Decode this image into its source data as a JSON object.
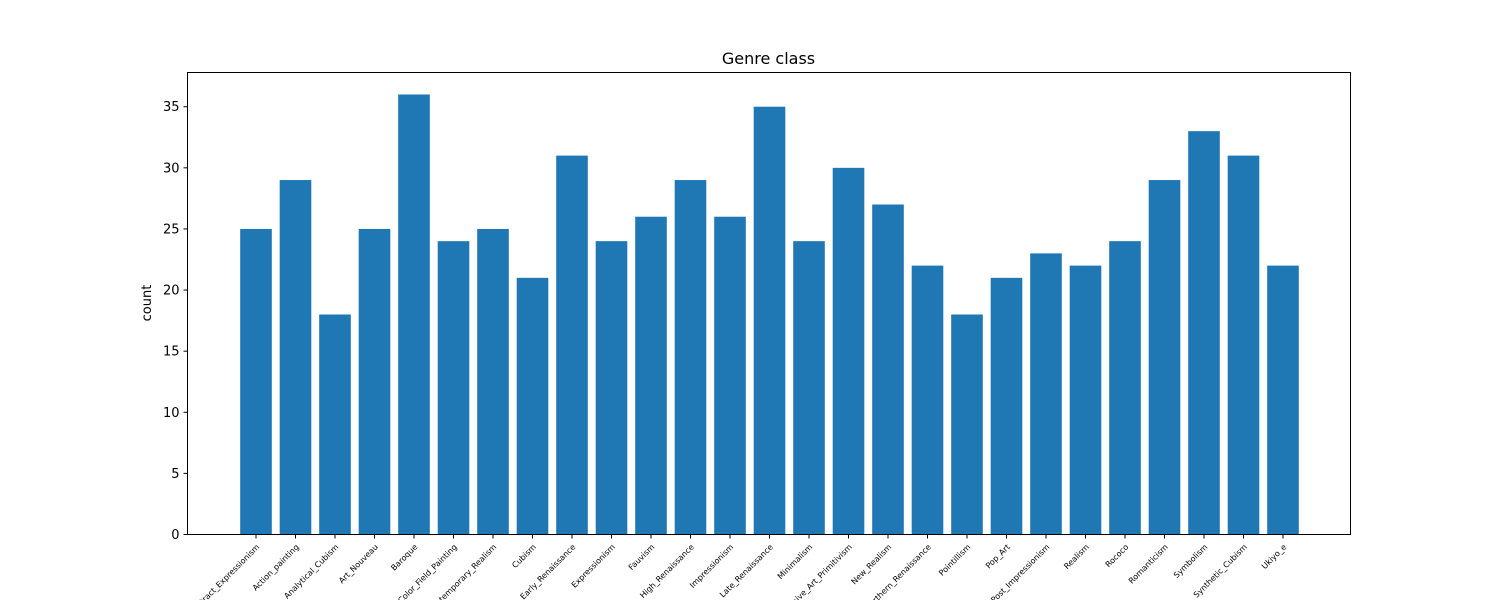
{
  "chart_data": {
    "type": "bar",
    "title": "Genre class",
    "xlabel": "",
    "ylabel": "count",
    "ylim": [
      0,
      37.8
    ],
    "yticks": [
      0,
      5,
      10,
      15,
      20,
      25,
      30,
      35
    ],
    "grid": false,
    "bar_color": "#1f77b4",
    "categories": [
      "Abstract_Expressionism",
      "Action_painting",
      "Analytical_Cubism",
      "Art_Nouveau",
      "Baroque",
      "Color_Field_Painting",
      "Contemporary_Realism",
      "Cubism",
      "Early_Renaissance",
      "Expressionism",
      "Fauvism",
      "High_Renaissance",
      "Impressionism",
      "Late_Renaissance",
      "Minimalism",
      "Naive_Art_Primitivism",
      "New_Realism",
      "Northern_Renaissance",
      "Pointillism",
      "Pop_Art",
      "Post_Impressionism",
      "Realism",
      "Rococo",
      "Romanticism",
      "Symbolism",
      "Synthetic_Cubism",
      "Ukiyo_e"
    ],
    "values": [
      25,
      29,
      18,
      25,
      36,
      24,
      25,
      21,
      31,
      24,
      26,
      29,
      26,
      35,
      24,
      30,
      27,
      22,
      18,
      21,
      23,
      22,
      24,
      29,
      33,
      31,
      22
    ]
  }
}
